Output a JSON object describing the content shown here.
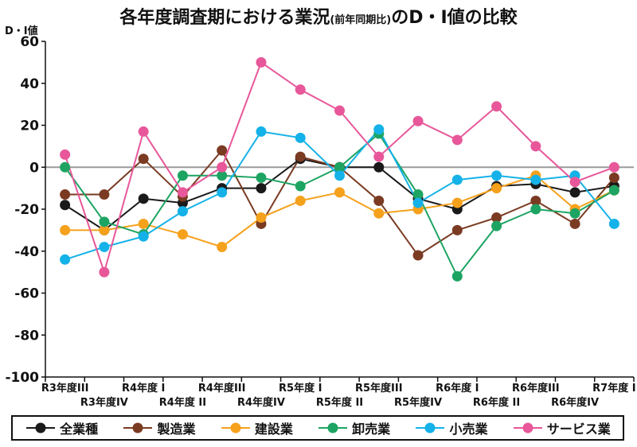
{
  "chart_data": {
    "type": "line",
    "title": "各年度調査期における業況",
    "subtitle": "(前年同期比)",
    "title_suffix": "のD・I値の比較",
    "ylabel": "D・I値",
    "xlabel": "",
    "ylim": [
      -100,
      60
    ],
    "yticks": [
      60,
      40,
      20,
      0,
      -20,
      -40,
      -60,
      -80,
      -100
    ],
    "grid": false,
    "legend_position": "bottom",
    "categories": [
      "R3年度III",
      "R3年度IV",
      "R4年度 I",
      "R4年度 II",
      "R4年度III",
      "R4年度IV",
      "R5年度 I",
      "R5年度 II",
      "R5年度III",
      "R5年度IV",
      "R6年度 I",
      "R6年度 II",
      "R6年度III",
      "R6年度IV",
      "R7年度 I"
    ],
    "series": [
      {
        "name": "全業種",
        "color": "#1a1a1a",
        "values": [
          -18,
          -30,
          -15,
          -17,
          -10,
          -10,
          4,
          0,
          0,
          -15,
          -20,
          -9,
          -8,
          -12,
          -9
        ]
      },
      {
        "name": "製造業",
        "color": "#7a3b22",
        "values": [
          -13,
          -13,
          4,
          -14,
          8,
          -27,
          5,
          0,
          -16,
          -42,
          -30,
          -24,
          -16,
          -27,
          -5
        ]
      },
      {
        "name": "建設業",
        "color": "#f5a11c",
        "values": [
          -30,
          -30,
          -27,
          -32,
          -38,
          -24,
          -16,
          -12,
          -22,
          -20,
          -17,
          -10,
          -4,
          -20,
          -11
        ]
      },
      {
        "name": "卸売業",
        "color": "#1da462",
        "values": [
          0,
          -26,
          -32,
          -4,
          -4,
          -5,
          -9,
          0,
          16,
          -13,
          -52,
          -28,
          -20,
          -22,
          -11
        ]
      },
      {
        "name": "小売業",
        "color": "#14b2e8",
        "values": [
          -44,
          -38,
          -33,
          -21,
          -12,
          17,
          14,
          -4,
          18,
          -17,
          -6,
          -4,
          -6,
          -4,
          -27
        ]
      },
      {
        "name": "サービス業",
        "color": "#e8579a",
        "values": [
          6,
          -50,
          17,
          -12,
          0,
          50,
          37,
          27,
          5,
          22,
          13,
          29,
          10,
          -7,
          0
        ]
      }
    ]
  }
}
